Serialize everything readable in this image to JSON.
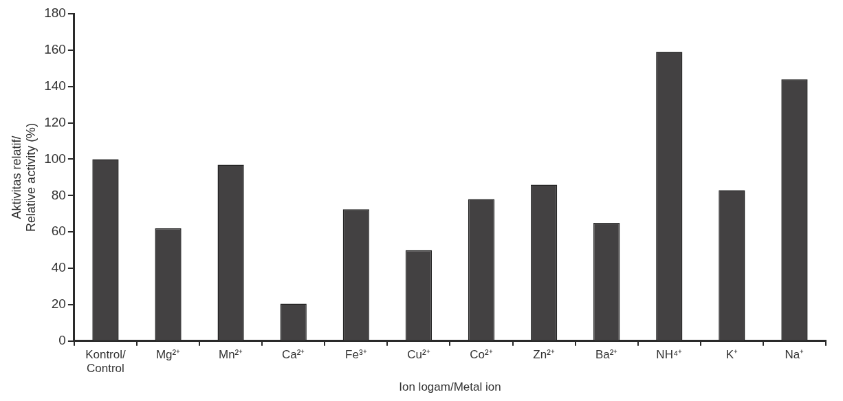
{
  "chart_data": {
    "type": "bar",
    "xlabel": "Ion logam/Metal ion",
    "ylabel": "Aktivitas relatif/\nRelative activity (%)",
    "categories": [
      "Kontrol/\nControl",
      "Mg²⁺",
      "Mn²⁺",
      "Ca²⁺",
      "Fe³⁺",
      "Cu²⁺",
      "Co²⁺",
      "Zn²⁺",
      "Ba²⁺",
      "NH⁴⁺",
      "K⁺",
      "Na⁺"
    ],
    "values": [
      100,
      62,
      97,
      20.5,
      72.5,
      50,
      78,
      86,
      65,
      159,
      83,
      144
    ],
    "color": "#434142",
    "ylim": [
      0,
      180
    ],
    "yticks": [
      0,
      20,
      40,
      60,
      80,
      100,
      120,
      140,
      160,
      180
    ],
    "grid": false,
    "legend": false
  }
}
